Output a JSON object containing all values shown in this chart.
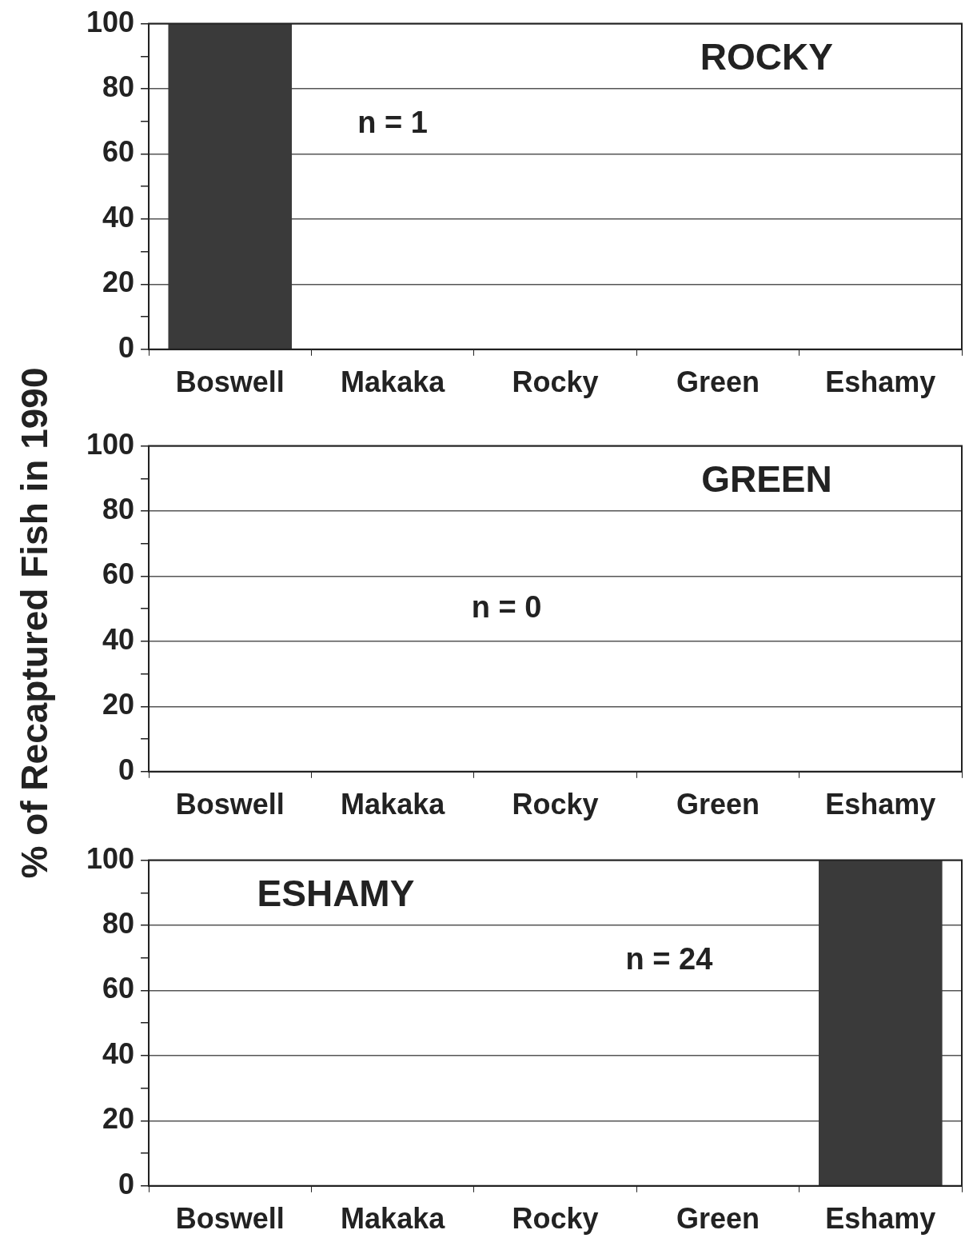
{
  "chart_data": [
    {
      "type": "bar",
      "title": "ROCKY",
      "categories": [
        "Boswell",
        "Makaka",
        "Rocky",
        "Green",
        "Eshamy"
      ],
      "values": [
        100,
        0,
        0,
        0,
        0
      ],
      "color": "#3a3a3a",
      "ylim": [
        0,
        100
      ],
      "yticks": [
        0,
        {
          "value": 10,
          "label": null
        },
        20,
        {
          "value": 30,
          "label": null
        },
        40,
        {
          "value": 50,
          "label": null
        },
        60,
        {
          "value": 70,
          "label": null
        },
        80,
        {
          "value": 90,
          "label": null
        },
        100
      ],
      "grid": "y",
      "annotations": [
        "n = 1"
      ]
    },
    {
      "type": "bar",
      "title": "GREEN",
      "ylabel": "% of Recaptured Fish in 1990",
      "categories": [
        "Boswell",
        "Makaka",
        "Rocky",
        "Green",
        "Eshamy"
      ],
      "values": [
        0,
        0,
        0,
        0,
        0
      ],
      "color": "#3a3a3a",
      "ylim": [
        0,
        100
      ],
      "yticks": [
        0,
        {
          "value": 10,
          "label": null
        },
        20,
        {
          "value": 30,
          "label": null
        },
        40,
        {
          "value": 50,
          "label": null
        },
        60,
        {
          "value": 70,
          "label": null
        },
        80,
        {
          "value": 90,
          "label": null
        },
        100
      ],
      "grid": "y",
      "annotations": [
        "n = 0"
      ]
    },
    {
      "type": "bar",
      "title": "ESHAMY",
      "categories": [
        "Boswell",
        "Makaka",
        "Rocky",
        "Green",
        "Eshamy"
      ],
      "values": [
        0,
        0,
        0,
        0,
        100
      ],
      "color": "#3a3a3a",
      "ylim": [
        0,
        100
      ],
      "yticks": [
        0,
        {
          "value": 10,
          "label": null
        },
        20,
        {
          "value": 30,
          "label": null
        },
        40,
        {
          "value": 50,
          "label": null
        },
        60,
        {
          "value": 70,
          "label": null
        },
        80,
        {
          "value": 90,
          "label": null
        },
        100
      ],
      "grid": "y",
      "annotations": [
        "n = 24"
      ]
    }
  ]
}
